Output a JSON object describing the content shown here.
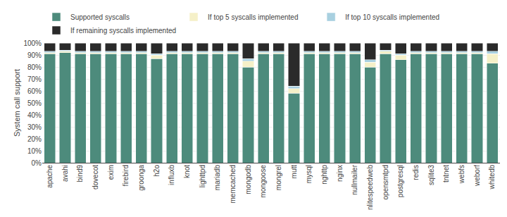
{
  "chart_data": {
    "type": "bar",
    "stacked": true,
    "categories": [
      "apache",
      "avahi",
      "bind9",
      "dovecot",
      "exim",
      "firebird",
      "groonga",
      "h2o",
      "influxb",
      "knot",
      "lighttpd",
      "mariadb",
      "memcached",
      "mongodb",
      "mongoose",
      "mongrel",
      "mutt",
      "mysql",
      "nghttp",
      "nginx",
      "nullmailer",
      "nlitespeedweb",
      "opensmtpd",
      "postgresql",
      "redis",
      "sqlite3",
      "tntnet",
      "webfs",
      "weborf",
      "whitedb"
    ],
    "series": [
      {
        "name": "Supported syscalls",
        "color": "#4d8b7c",
        "values": [
          91,
          92,
          91,
          91,
          91,
          91,
          91,
          87,
          91,
          91,
          91,
          91,
          91,
          80,
          91,
          91,
          58,
          91,
          91,
          91,
          91,
          80,
          91,
          86,
          91,
          91,
          91,
          91,
          91,
          83
        ]
      },
      {
        "name": "If top 5 syscalls implemented",
        "color": "#f5f0c8",
        "values": [
          1,
          1,
          1,
          1,
          1,
          1,
          1,
          3,
          1,
          1,
          1,
          1,
          1,
          5,
          1,
          1,
          4,
          1,
          1,
          1,
          1,
          4,
          2,
          4,
          1,
          1,
          1,
          1,
          1,
          8
        ]
      },
      {
        "name": "If top 10 syscalls implemented",
        "color": "#a8d0e0",
        "values": [
          1,
          1,
          1,
          1,
          1,
          1,
          1,
          1,
          1,
          1,
          1,
          1,
          1,
          2,
          1,
          1,
          2,
          1,
          1,
          1,
          1,
          2,
          1,
          1,
          1,
          1,
          1,
          1,
          1,
          2
        ]
      },
      {
        "name": "If remaining syscalls implemented",
        "color": "#2a2a2a",
        "values": [
          7,
          6,
          7,
          7,
          7,
          7,
          7,
          9,
          7,
          7,
          7,
          7,
          7,
          13,
          7,
          7,
          36,
          7,
          7,
          7,
          7,
          14,
          6,
          9,
          7,
          7,
          7,
          7,
          7,
          7
        ]
      }
    ],
    "ylabel": "System call support",
    "ylim": [
      0,
      100
    ],
    "yticks": [
      {
        "value": 0,
        "label": "0%"
      },
      {
        "value": 10,
        "label": "10%"
      },
      {
        "value": 20,
        "label": "20%"
      },
      {
        "value": 30,
        "label": "30%"
      },
      {
        "value": 40,
        "label": "40%"
      },
      {
        "value": 50,
        "label": "50%"
      },
      {
        "value": 60,
        "label": "60%"
      },
      {
        "value": 70,
        "label": "70%"
      },
      {
        "value": 80,
        "label": "80%"
      },
      {
        "value": 90,
        "label": "90%"
      },
      {
        "value": 100,
        "label": "100%"
      }
    ],
    "grid": true,
    "legend": "top"
  }
}
